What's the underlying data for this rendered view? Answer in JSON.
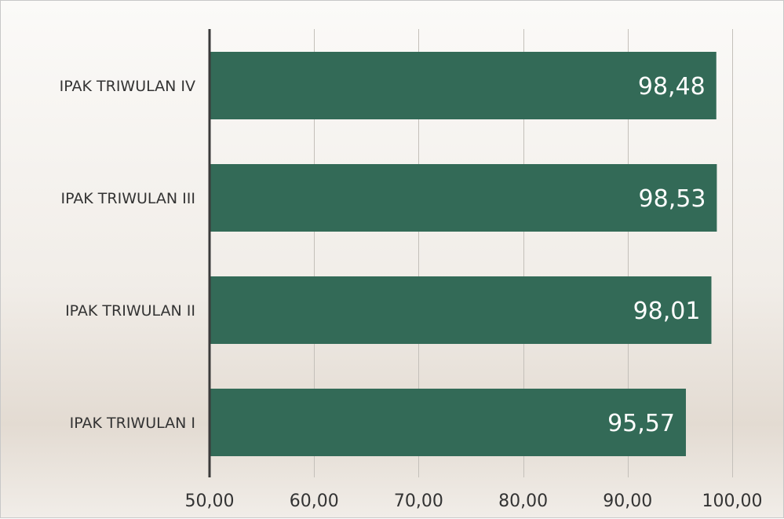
{
  "chart_data": {
    "type": "bar",
    "orientation": "horizontal",
    "categories": [
      "IPAK TRIWULAN IV",
      "IPAK TRIWULAN III",
      "IPAK TRIWULAN II",
      "IPAK TRIWULAN I"
    ],
    "values": [
      98.48,
      98.53,
      98.01,
      95.57
    ],
    "value_labels": [
      "98,48",
      "98,53",
      "98,01",
      "95,57"
    ],
    "x_ticks": [
      50,
      60,
      70,
      80,
      90,
      100
    ],
    "x_tick_labels": [
      "50,00",
      "60,00",
      "70,00",
      "80,00",
      "90,00",
      "100,00"
    ],
    "xlim": [
      50,
      100
    ],
    "title": "",
    "xlabel": "",
    "ylabel": "",
    "grid": "vertical",
    "legend": "none",
    "bar_color": "#336a57",
    "label_color": "#ffffff",
    "axis_color": "#3a3a3a",
    "grid_color": "#c4c0ba",
    "text_color": "#333333"
  }
}
